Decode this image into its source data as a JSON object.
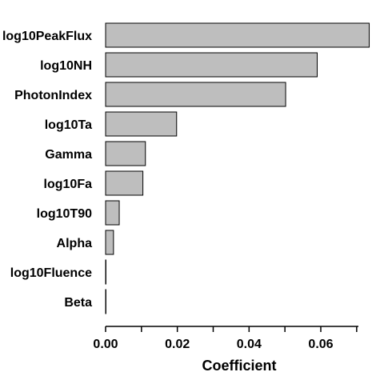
{
  "chart_data": {
    "type": "bar",
    "orientation": "horizontal",
    "categories": [
      "log10PeakFlux",
      "log10NH",
      "PhotonIndex",
      "log10Ta",
      "Gamma",
      "log10Fa",
      "log10T90",
      "Alpha",
      "log10Fluence",
      "Beta"
    ],
    "values": [
      0.0735,
      0.059,
      0.0502,
      0.0198,
      0.0111,
      0.0104,
      0.0038,
      0.0022,
      0.0001,
      0.0001
    ],
    "xlabel": "Coefficient",
    "ylabel": "",
    "xlim": [
      0,
      0.0745
    ],
    "xticks": [
      0.0,
      0.02,
      0.04,
      0.06
    ],
    "xtick_labels": [
      "0.00",
      "0.02",
      "0.04",
      "0.06"
    ],
    "grid": false,
    "bar_color": "#bebebe",
    "bar_edge_color": "#000000"
  }
}
